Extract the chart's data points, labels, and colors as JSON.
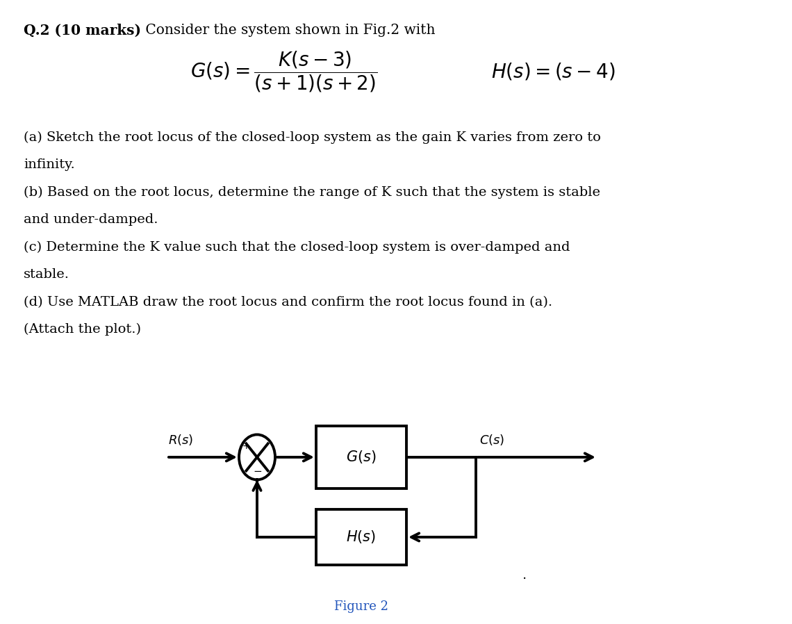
{
  "bg_color": "#ffffff",
  "text_color": "#000000",
  "figure_caption_color": "#2255bb",
  "lw": 2.8,
  "title_bold": "Q.2 (10 marks)",
  "title_normal": " Consider the system shown in Fig.2 with",
  "part_a_line1": "(a) Sketch the root locus of the closed-loop system as the gain K varies from zero to",
  "part_a_line2": "infinity.",
  "part_b_line1": "(b) Based on the root locus, determine the range of K such that the system is stable",
  "part_b_line2": "and under-damped.",
  "part_c_line1": "(c) Determine the K value such that the closed-loop system is over-damped and",
  "part_c_line2": "stable.",
  "part_d": "(d) Use MATLAB draw the root locus and confirm the root locus found in (a).",
  "part_e": "(Attach the plot.)",
  "figure_caption": "Figure 2"
}
